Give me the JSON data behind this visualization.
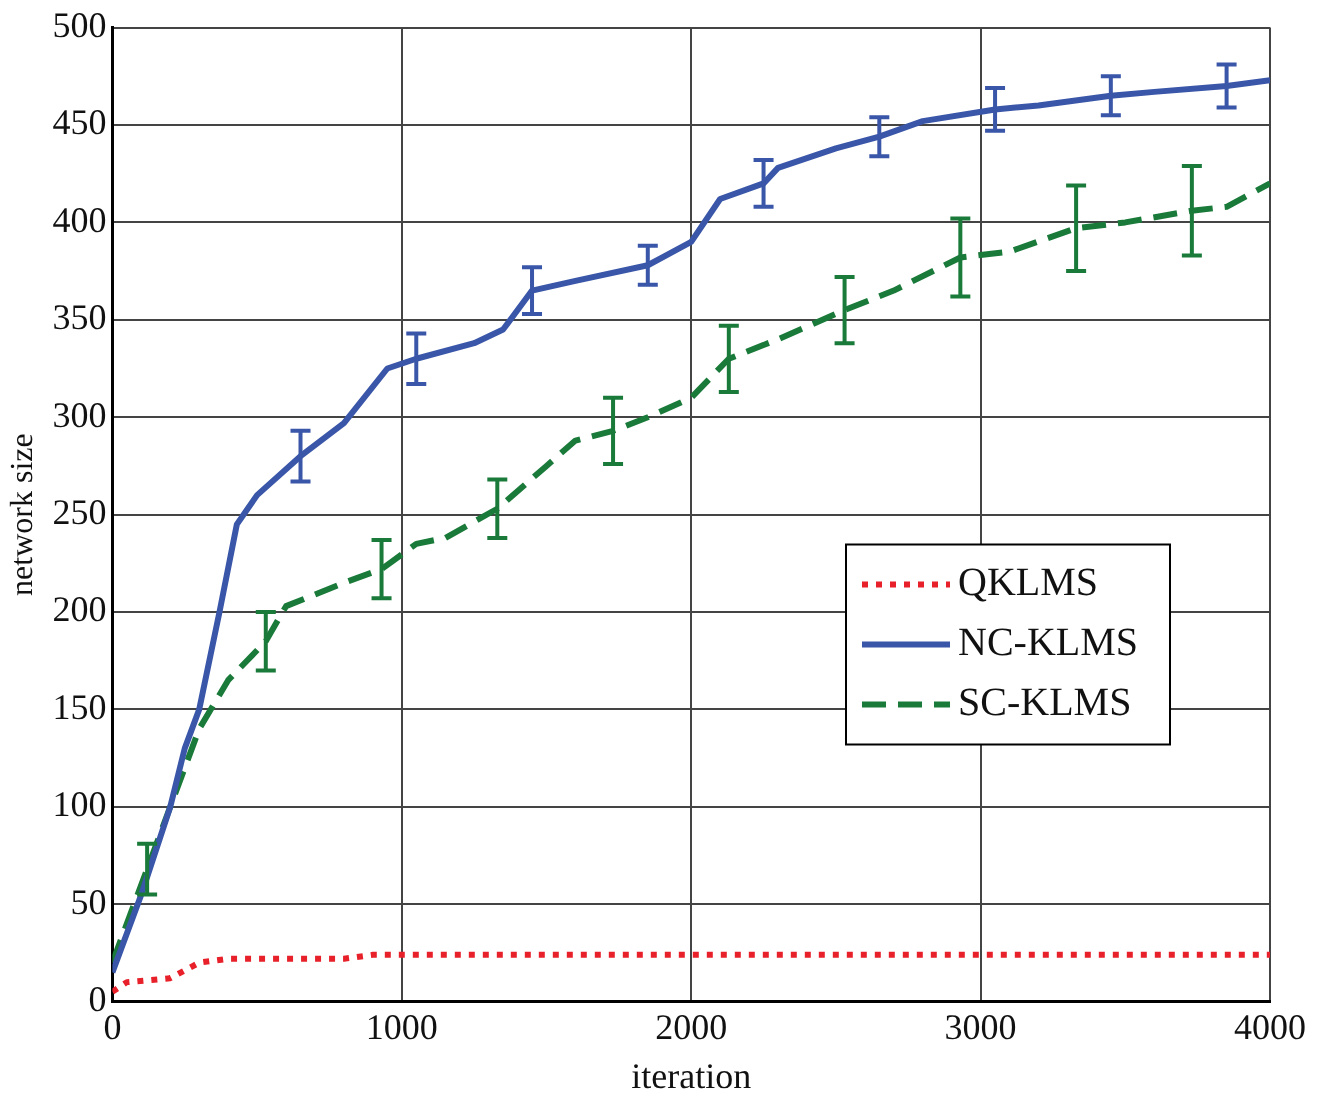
{
  "chart_data": {
    "type": "line",
    "xlabel": "iteration",
    "ylabel": "network size",
    "xlim": [
      0,
      4000
    ],
    "xticks": [
      0,
      1000,
      2000,
      3000,
      4000
    ],
    "ylim": [
      0,
      500
    ],
    "yticks": [
      0,
      50,
      100,
      150,
      200,
      250,
      300,
      350,
      400,
      450,
      500
    ],
    "grid": true,
    "legend": "right",
    "series": [
      {
        "name": "QKLMS",
        "color": "#e8202a",
        "line_style": "dotted",
        "x": [
          0,
          50,
          200,
          300,
          400,
          800,
          900,
          4000
        ],
        "values": [
          5,
          10,
          12,
          20,
          22,
          22,
          24,
          24
        ]
      },
      {
        "name": "NC-KLMS",
        "color": "#3a56a8",
        "line_style": "solid",
        "x": [
          0,
          100,
          200,
          250,
          300,
          370,
          430,
          500,
          650,
          800,
          950,
          1050,
          1250,
          1350,
          1450,
          1600,
          1850,
          2000,
          2100,
          2250,
          2300,
          2500,
          2650,
          2800,
          3050,
          3200,
          3450,
          3600,
          3850,
          4000
        ],
        "values": [
          15,
          55,
          100,
          130,
          150,
          200,
          245,
          260,
          280,
          297,
          325,
          330,
          338,
          345,
          365,
          370,
          378,
          390,
          412,
          420,
          428,
          438,
          444,
          452,
          458,
          460,
          465,
          467,
          470,
          473
        ],
        "errors": [
          null,
          null,
          null,
          null,
          null,
          null,
          null,
          null,
          13,
          null,
          null,
          13,
          null,
          null,
          12,
          null,
          10,
          null,
          null,
          12,
          null,
          null,
          10,
          null,
          11,
          null,
          10,
          null,
          11,
          null
        ]
      },
      {
        "name": "SC-KLMS",
        "color": "#1a7a3a",
        "line_style": "dashed",
        "x": [
          0,
          120,
          200,
          300,
          400,
          530,
          600,
          800,
          930,
          1050,
          1150,
          1330,
          1500,
          1600,
          1730,
          1850,
          2000,
          2130,
          2300,
          2530,
          2700,
          2930,
          3100,
          3330,
          3500,
          3730,
          3850,
          4000
        ],
        "values": [
          20,
          68,
          100,
          140,
          165,
          185,
          203,
          215,
          222,
          235,
          238,
          253,
          275,
          288,
          293,
          300,
          310,
          330,
          340,
          355,
          365,
          382,
          385,
          397,
          400,
          406,
          408,
          420
        ],
        "errors": [
          null,
          13,
          null,
          null,
          null,
          15,
          null,
          null,
          15,
          null,
          null,
          15,
          null,
          null,
          17,
          null,
          null,
          17,
          null,
          17,
          null,
          20,
          null,
          22,
          null,
          23,
          null,
          null
        ]
      }
    ]
  }
}
